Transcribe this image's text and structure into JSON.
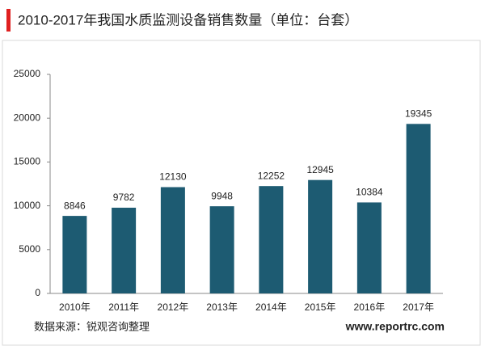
{
  "chart_data": {
    "type": "bar",
    "title": "2010-2017年我国水质监测设备销售数量（单位：台套）",
    "categories": [
      "2010年",
      "2011年",
      "2012年",
      "2013年",
      "2014年",
      "2015年",
      "2016年",
      "2017年"
    ],
    "values": [
      8846,
      9782,
      12130,
      9948,
      12252,
      12945,
      10384,
      19345
    ],
    "color": "#1d5b72",
    "ylim": [
      0,
      25000
    ],
    "yticks": [
      0,
      5000,
      10000,
      15000,
      20000,
      25000
    ],
    "source": "数据来源：锐观咨询整理",
    "website": "www.reportrc.com"
  }
}
